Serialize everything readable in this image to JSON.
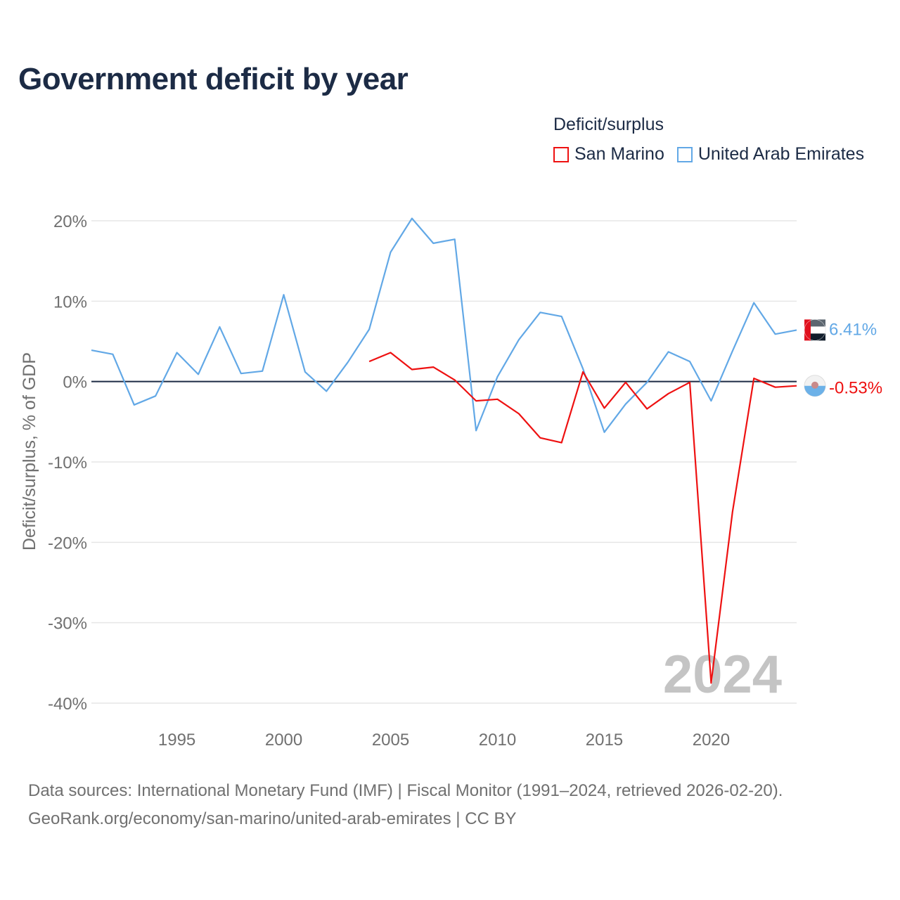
{
  "title": "Government deficit by year",
  "legend": {
    "title": "Deficit/surplus",
    "items": [
      {
        "label": "San Marino",
        "color": "#ee1111"
      },
      {
        "label": "United Arab Emirates",
        "color": "#62a8e6"
      }
    ]
  },
  "source": {
    "line1": "Data sources: International Monetary Fund (IMF) | Fiscal Monitor (1991–2024, retrieved 2026-02-20).",
    "line2": "GeoRank.org/economy/san-marino/united-arab-emirates | CC BY"
  },
  "chart_data": {
    "type": "line",
    "title": "Government deficit by year",
    "xlabel": "",
    "ylabel": "Deficit/surplus, % of GDP",
    "xlim": [
      1991,
      2024
    ],
    "ylim": [
      -40,
      20
    ],
    "yticks": [
      20,
      10,
      0,
      -10,
      -20,
      -30,
      -40
    ],
    "ytick_labels": [
      "20%",
      "10%",
      "0%",
      "-10%",
      "-20%",
      "-30%",
      "-40%"
    ],
    "xticks": [
      1995,
      2000,
      2005,
      2010,
      2015,
      2020
    ],
    "xtick_labels": [
      "1995",
      "2000",
      "2005",
      "2010",
      "2015",
      "2020"
    ],
    "watermark_year": "2024",
    "series": [
      {
        "name": "United Arab Emirates",
        "color": "#62a8e6",
        "end_label": "6.41%",
        "x": [
          1991,
          1992,
          1993,
          1994,
          1995,
          1996,
          1997,
          1998,
          1999,
          2000,
          2001,
          2002,
          2003,
          2004,
          2005,
          2006,
          2007,
          2008,
          2009,
          2010,
          2011,
          2012,
          2013,
          2014,
          2015,
          2016,
          2017,
          2018,
          2019,
          2020,
          2021,
          2022,
          2023,
          2024
        ],
        "values": [
          3.9,
          3.4,
          -2.9,
          -1.8,
          3.6,
          0.9,
          6.8,
          1.0,
          1.3,
          10.8,
          1.2,
          -1.2,
          2.4,
          6.5,
          16.1,
          20.3,
          17.2,
          17.7,
          -6.1,
          0.6,
          5.2,
          8.6,
          8.1,
          1.6,
          -6.3,
          -2.8,
          -0.1,
          3.7,
          2.5,
          -2.4,
          3.8,
          9.8,
          5.9,
          6.41
        ]
      },
      {
        "name": "San Marino",
        "color": "#ee1111",
        "end_label": "-0.53%",
        "x": [
          2004,
          2005,
          2006,
          2007,
          2008,
          2009,
          2010,
          2011,
          2012,
          2013,
          2014,
          2015,
          2016,
          2017,
          2018,
          2019,
          2020,
          2021,
          2022,
          2023,
          2024
        ],
        "values": [
          2.5,
          3.6,
          1.5,
          1.8,
          0.2,
          -2.4,
          -2.2,
          -4.0,
          -7.0,
          -7.6,
          1.2,
          -3.3,
          -0.1,
          -3.4,
          -1.5,
          -0.1,
          -37.5,
          -16.2,
          0.4,
          -0.7,
          -0.53
        ]
      }
    ]
  }
}
